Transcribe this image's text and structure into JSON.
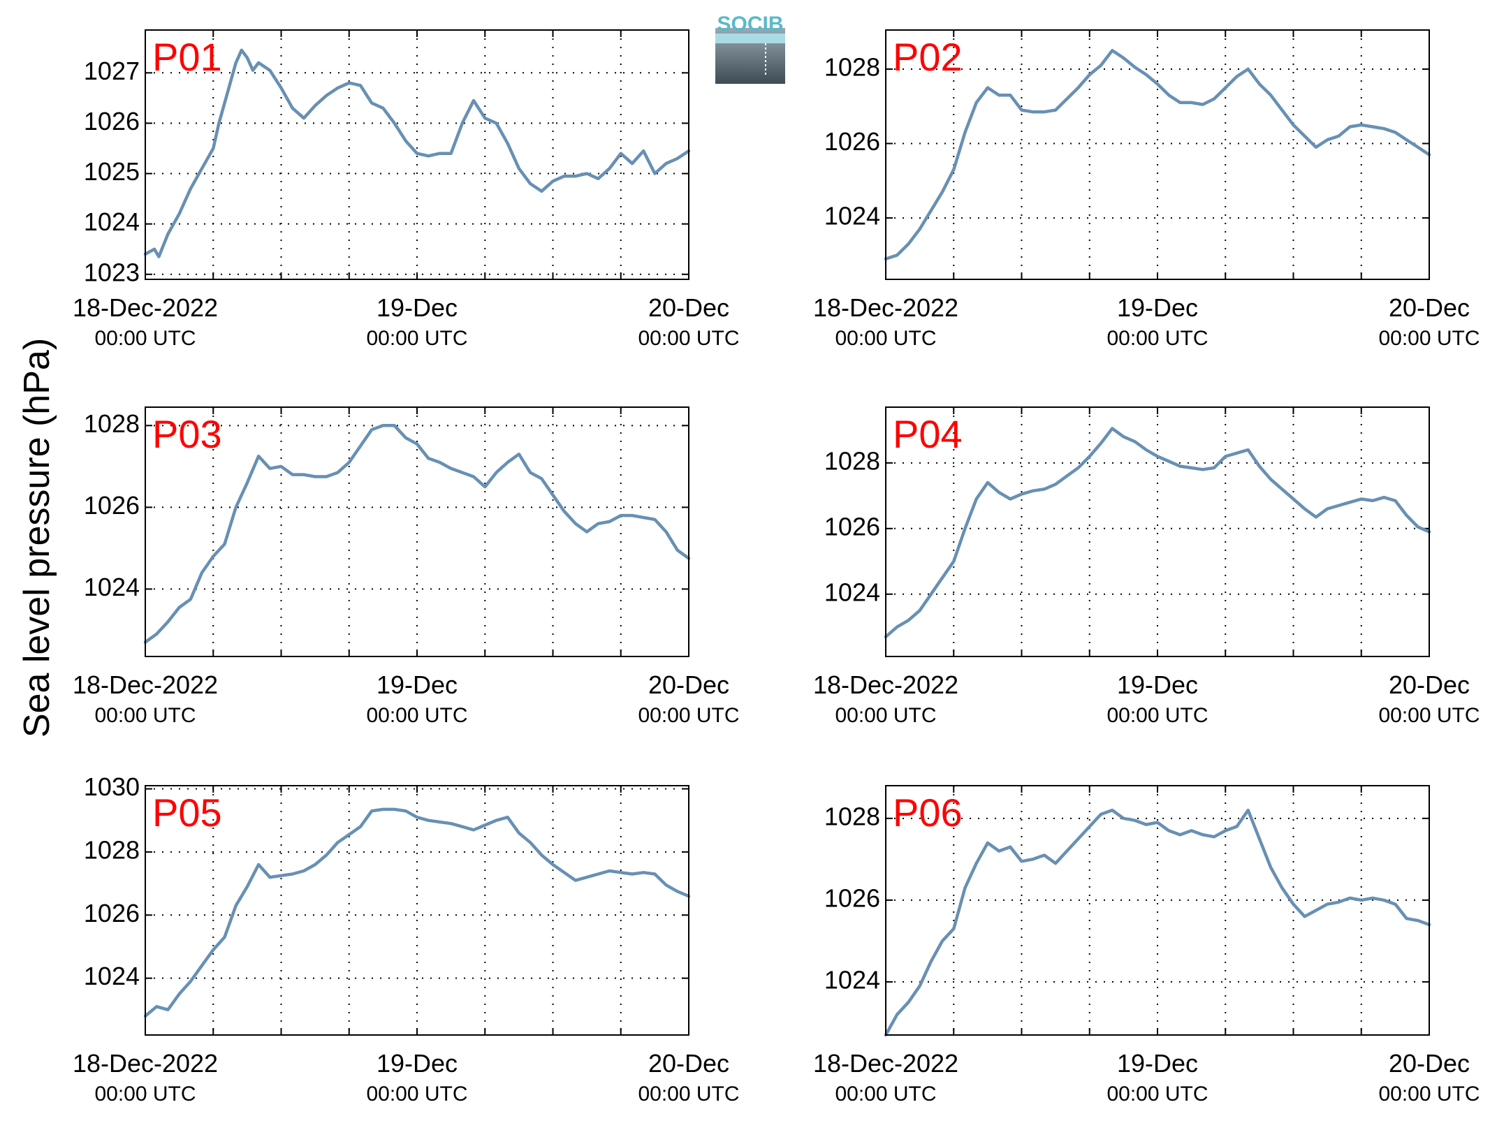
{
  "figure": {
    "ylabel": "Sea level pressure (hPa)",
    "logo_text": "SOCIB",
    "series_color": "#6790b3",
    "label_color": "#ff0000"
  },
  "chart_data": [
    {
      "type": "line",
      "panel_label": "P01",
      "xlim": [
        0,
        48
      ],
      "ylim": [
        1022.9,
        1027.85
      ],
      "yticks": [
        1023,
        1024,
        1025,
        1026,
        1027
      ],
      "xticks": [
        {
          "at": 0,
          "label": "18-Dec-2022",
          "sub": "00:00 UTC"
        },
        {
          "at": 24,
          "label": "19-Dec",
          "sub": "00:00 UTC"
        },
        {
          "at": 48,
          "label": "20-Dec",
          "sub": "00:00 UTC"
        }
      ],
      "grid": true,
      "x": [
        0,
        0.8,
        1.2,
        2,
        3,
        4,
        5,
        6,
        6.5,
        7,
        8,
        8.5,
        9,
        9.5,
        10,
        11,
        12,
        13,
        14,
        15,
        16,
        17,
        18,
        19,
        20,
        21,
        22,
        23,
        24,
        25,
        26,
        27,
        28,
        29,
        30,
        31,
        32,
        33,
        34,
        35,
        36,
        37,
        38,
        39,
        40,
        41,
        42,
        43,
        44,
        45,
        46,
        47,
        48
      ],
      "y": [
        1023.4,
        1023.5,
        1023.35,
        1023.8,
        1024.2,
        1024.7,
        1025.1,
        1025.5,
        1026.0,
        1026.4,
        1027.2,
        1027.45,
        1027.3,
        1027.05,
        1027.2,
        1027.05,
        1026.7,
        1026.3,
        1026.1,
        1026.35,
        1026.55,
        1026.7,
        1026.8,
        1026.75,
        1026.4,
        1026.3,
        1026.0,
        1025.65,
        1025.4,
        1025.35,
        1025.4,
        1025.4,
        1026.0,
        1026.45,
        1026.1,
        1026.0,
        1025.6,
        1025.1,
        1024.8,
        1024.65,
        1024.85,
        1024.95,
        1024.95,
        1025.0,
        1024.9,
        1025.1,
        1025.4,
        1025.2,
        1025.45,
        1025.0,
        1025.2,
        1025.3,
        1025.45
      ]
    },
    {
      "type": "line",
      "panel_label": "P02",
      "xlim": [
        0,
        48
      ],
      "ylim": [
        1022.35,
        1029.05
      ],
      "yticks": [
        1024,
        1026,
        1028
      ],
      "xticks": [
        {
          "at": 0,
          "label": "18-Dec-2022",
          "sub": "00:00 UTC"
        },
        {
          "at": 24,
          "label": "19-Dec",
          "sub": "00:00 UTC"
        },
        {
          "at": 48,
          "label": "20-Dec",
          "sub": "00:00 UTC"
        }
      ],
      "grid": true,
      "x": [
        0,
        1,
        2,
        3,
        4,
        5,
        6,
        7,
        8,
        9,
        10,
        11,
        12,
        13,
        14,
        15,
        16,
        17,
        18,
        19,
        20,
        21,
        22,
        23,
        24,
        25,
        26,
        27,
        28,
        29,
        30,
        31,
        32,
        33,
        34,
        35,
        36,
        37,
        38,
        39,
        40,
        41,
        42,
        43,
        44,
        45,
        46,
        47,
        48
      ],
      "y": [
        1022.9,
        1023.0,
        1023.3,
        1023.7,
        1024.2,
        1024.7,
        1025.3,
        1026.3,
        1027.1,
        1027.5,
        1027.3,
        1027.3,
        1026.9,
        1026.85,
        1026.85,
        1026.9,
        1027.2,
        1027.5,
        1027.85,
        1028.1,
        1028.5,
        1028.3,
        1028.05,
        1027.85,
        1027.6,
        1027.3,
        1027.1,
        1027.1,
        1027.05,
        1027.2,
        1027.5,
        1027.8,
        1028.0,
        1027.6,
        1027.3,
        1026.9,
        1026.5,
        1026.2,
        1025.9,
        1026.1,
        1026.2,
        1026.45,
        1026.5,
        1026.45,
        1026.4,
        1026.3,
        1026.1,
        1025.9,
        1025.7
      ]
    },
    {
      "type": "line",
      "panel_label": "P03",
      "xlim": [
        0,
        48
      ],
      "ylim": [
        1022.35,
        1028.45
      ],
      "yticks": [
        1024,
        1026,
        1028
      ],
      "xticks": [
        {
          "at": 0,
          "label": "18-Dec-2022",
          "sub": "00:00 UTC"
        },
        {
          "at": 24,
          "label": "19-Dec",
          "sub": "00:00 UTC"
        },
        {
          "at": 48,
          "label": "20-Dec",
          "sub": "00:00 UTC"
        }
      ],
      "grid": true,
      "x": [
        0,
        1,
        2,
        3,
        4,
        5,
        6,
        7,
        8,
        9,
        10,
        11,
        12,
        13,
        14,
        15,
        16,
        17,
        18,
        19,
        20,
        21,
        22,
        23,
        24,
        25,
        26,
        27,
        28,
        29,
        30,
        31,
        32,
        33,
        34,
        35,
        36,
        37,
        38,
        39,
        40,
        41,
        42,
        43,
        44,
        45,
        46,
        47,
        48
      ],
      "y": [
        1022.7,
        1022.9,
        1023.2,
        1023.55,
        1023.75,
        1024.4,
        1024.8,
        1025.1,
        1026.0,
        1026.6,
        1027.25,
        1026.95,
        1027.0,
        1026.8,
        1026.8,
        1026.75,
        1026.75,
        1026.85,
        1027.1,
        1027.5,
        1027.9,
        1028.0,
        1028.0,
        1027.7,
        1027.55,
        1027.2,
        1027.1,
        1026.95,
        1026.85,
        1026.75,
        1026.5,
        1026.85,
        1027.1,
        1027.3,
        1026.85,
        1026.7,
        1026.3,
        1025.9,
        1025.6,
        1025.4,
        1025.6,
        1025.65,
        1025.8,
        1025.8,
        1025.75,
        1025.7,
        1025.4,
        1024.95,
        1024.75
      ]
    },
    {
      "type": "line",
      "panel_label": "P04",
      "xlim": [
        0,
        48
      ],
      "ylim": [
        1022.1,
        1029.7
      ],
      "yticks": [
        1024,
        1026,
        1028
      ],
      "xticks": [
        {
          "at": 0,
          "label": "18-Dec-2022",
          "sub": "00:00 UTC"
        },
        {
          "at": 24,
          "label": "19-Dec",
          "sub": "00:00 UTC"
        },
        {
          "at": 48,
          "label": "20-Dec",
          "sub": "00:00 UTC"
        }
      ],
      "grid": true,
      "x": [
        0,
        1,
        2,
        3,
        4,
        5,
        6,
        7,
        8,
        9,
        10,
        11,
        12,
        13,
        14,
        15,
        16,
        17,
        18,
        19,
        20,
        21,
        22,
        23,
        24,
        25,
        26,
        27,
        28,
        29,
        30,
        31,
        32,
        33,
        34,
        35,
        36,
        37,
        38,
        39,
        40,
        41,
        42,
        43,
        44,
        45,
        46,
        47,
        48
      ],
      "y": [
        1022.7,
        1023.0,
        1023.2,
        1023.5,
        1024.0,
        1024.5,
        1025.0,
        1026.0,
        1026.9,
        1027.4,
        1027.1,
        1026.9,
        1027.05,
        1027.15,
        1027.2,
        1027.35,
        1027.6,
        1027.85,
        1028.2,
        1028.6,
        1029.05,
        1028.8,
        1028.65,
        1028.4,
        1028.2,
        1028.05,
        1027.9,
        1027.85,
        1027.8,
        1027.85,
        1028.2,
        1028.3,
        1028.4,
        1027.9,
        1027.5,
        1027.2,
        1026.9,
        1026.6,
        1026.35,
        1026.6,
        1026.7,
        1026.8,
        1026.9,
        1026.85,
        1026.95,
        1026.85,
        1026.4,
        1026.05,
        1025.9
      ]
    },
    {
      "type": "line",
      "panel_label": "P05",
      "xlim": [
        0,
        48
      ],
      "ylim": [
        1022.2,
        1030.1
      ],
      "yticks": [
        1024,
        1026,
        1028,
        1030
      ],
      "xticks": [
        {
          "at": 0,
          "label": "18-Dec-2022",
          "sub": "00:00 UTC"
        },
        {
          "at": 24,
          "label": "19-Dec",
          "sub": "00:00 UTC"
        },
        {
          "at": 48,
          "label": "20-Dec",
          "sub": "00:00 UTC"
        }
      ],
      "grid": true,
      "x": [
        0,
        1,
        2,
        3,
        4,
        5,
        6,
        7,
        8,
        9,
        10,
        11,
        12,
        13,
        14,
        15,
        16,
        17,
        18,
        19,
        20,
        21,
        22,
        23,
        24,
        25,
        26,
        27,
        28,
        29,
        30,
        31,
        32,
        33,
        34,
        35,
        36,
        37,
        38,
        39,
        40,
        41,
        42,
        43,
        44,
        45,
        46,
        47,
        48
      ],
      "y": [
        1022.8,
        1023.1,
        1023.0,
        1023.5,
        1023.9,
        1024.4,
        1024.9,
        1025.3,
        1026.3,
        1026.9,
        1027.6,
        1027.2,
        1027.25,
        1027.3,
        1027.4,
        1027.6,
        1027.9,
        1028.3,
        1028.55,
        1028.8,
        1029.3,
        1029.35,
        1029.35,
        1029.3,
        1029.1,
        1029.0,
        1028.95,
        1028.9,
        1028.8,
        1028.7,
        1028.85,
        1029.0,
        1029.1,
        1028.6,
        1028.3,
        1027.9,
        1027.6,
        1027.35,
        1027.1,
        1027.2,
        1027.3,
        1027.4,
        1027.35,
        1027.3,
        1027.35,
        1027.3,
        1026.95,
        1026.75,
        1026.6
      ]
    },
    {
      "type": "line",
      "panel_label": "P06",
      "xlim": [
        0,
        48
      ],
      "ylim": [
        1022.7,
        1028.8
      ],
      "yticks": [
        1024,
        1026,
        1028
      ],
      "xticks": [
        {
          "at": 0,
          "label": "18-Dec-2022",
          "sub": "00:00 UTC"
        },
        {
          "at": 24,
          "label": "19-Dec",
          "sub": "00:00 UTC"
        },
        {
          "at": 48,
          "label": "20-Dec",
          "sub": "00:00 UTC"
        }
      ],
      "grid": true,
      "x": [
        0,
        1,
        2,
        3,
        4,
        5,
        6,
        7,
        8,
        9,
        10,
        11,
        12,
        13,
        14,
        15,
        16,
        17,
        18,
        19,
        20,
        21,
        22,
        23,
        24,
        25,
        26,
        27,
        28,
        29,
        30,
        31,
        32,
        33,
        34,
        35,
        36,
        37,
        38,
        39,
        40,
        41,
        42,
        43,
        44,
        45,
        46,
        47,
        48
      ],
      "y": [
        1022.7,
        1023.2,
        1023.5,
        1023.9,
        1024.5,
        1025.0,
        1025.3,
        1026.3,
        1026.9,
        1027.4,
        1027.2,
        1027.3,
        1026.95,
        1027.0,
        1027.1,
        1026.9,
        1027.2,
        1027.5,
        1027.8,
        1028.1,
        1028.2,
        1028.0,
        1027.95,
        1027.85,
        1027.9,
        1027.7,
        1027.6,
        1027.7,
        1027.6,
        1027.55,
        1027.7,
        1027.8,
        1028.2,
        1027.5,
        1026.8,
        1026.3,
        1025.9,
        1025.6,
        1025.75,
        1025.9,
        1025.95,
        1026.05,
        1026.0,
        1026.05,
        1026.0,
        1025.9,
        1025.55,
        1025.5,
        1025.4
      ]
    }
  ]
}
